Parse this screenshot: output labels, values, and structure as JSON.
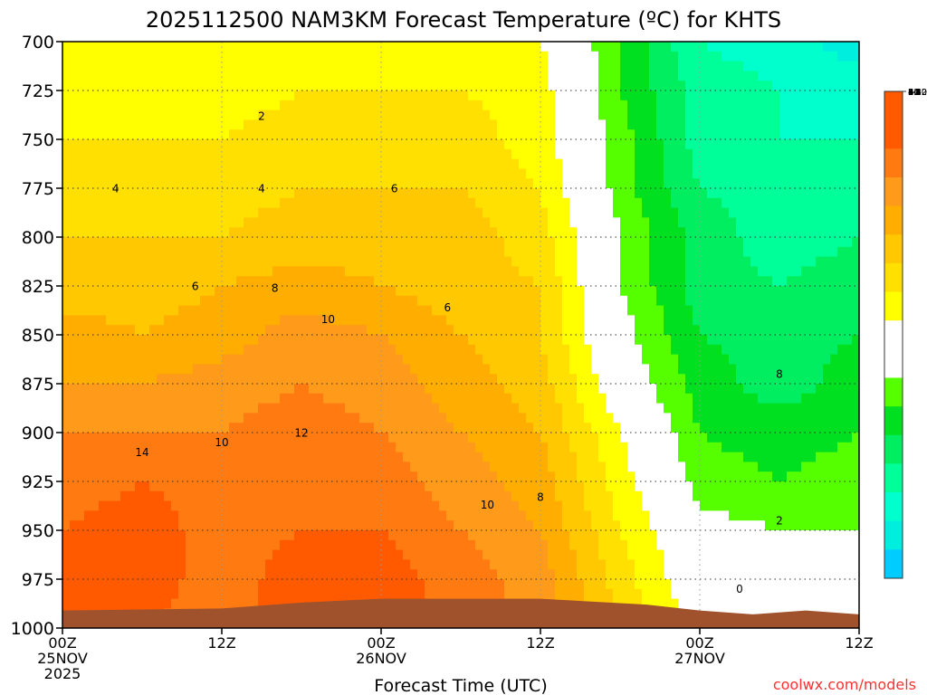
{
  "chart_data": {
    "type": "heatmap",
    "title": "2025112500 NAM3KM Forecast Temperature (ºC) for KHTS",
    "xlabel": "Forecast Time (UTC)",
    "ylabel": "",
    "watermark": "coolwx.com/models",
    "x_range_hours": [
      0,
      60
    ],
    "y_range_hpa": [
      700,
      1000
    ],
    "y_ticks": [
      "700",
      "725",
      "750",
      "775",
      "800",
      "825",
      "850",
      "875",
      "900",
      "925",
      "950",
      "975",
      "1000"
    ],
    "x_ticks": [
      {
        "hour": 0,
        "lines": [
          "00Z",
          "25NOV",
          "2025"
        ]
      },
      {
        "hour": 12,
        "lines": [
          "12Z"
        ]
      },
      {
        "hour": 24,
        "lines": [
          "00Z",
          "26NOV"
        ]
      },
      {
        "hour": 36,
        "lines": [
          "12Z"
        ]
      },
      {
        "hour": 48,
        "lines": [
          "00Z",
          "27NOV"
        ]
      },
      {
        "hour": 60,
        "lines": [
          "12Z"
        ]
      }
    ],
    "colorbar": {
      "labels": [
        "14",
        "12",
        "10",
        "8",
        "6",
        "4",
        "2",
        "−2",
        "−4",
        "−6",
        "−8",
        "−10",
        "−12"
      ],
      "bins": [
        {
          "min": 15,
          "max": 17,
          "color": "#ff5a00"
        },
        {
          "min": 13,
          "max": 15,
          "color": "#ff5a00"
        },
        {
          "min": 11,
          "max": 13,
          "color": "#ff7a10"
        },
        {
          "min": 9,
          "max": 11,
          "color": "#ff9a1a"
        },
        {
          "min": 7,
          "max": 9,
          "color": "#ffae00"
        },
        {
          "min": 5,
          "max": 7,
          "color": "#ffc800"
        },
        {
          "min": 3,
          "max": 5,
          "color": "#ffe000"
        },
        {
          "min": 1,
          "max": 3,
          "color": "#ffff00"
        },
        {
          "min": -1,
          "max": 1,
          "color": "#ffffff"
        },
        {
          "min": -3,
          "max": -1,
          "color": "#ffffff"
        },
        {
          "min": -5,
          "max": -3,
          "color": "#55ff00"
        },
        {
          "min": -7,
          "max": -5,
          "color": "#00e020"
        },
        {
          "min": -9,
          "max": -7,
          "color": "#00ee60"
        },
        {
          "min": -11,
          "max": -9,
          "color": "#00ff99"
        },
        {
          "min": -13,
          "max": -11,
          "color": "#00ffcc"
        },
        {
          "min": -15,
          "max": -13,
          "color": "#00eedd"
        },
        {
          "min": -17,
          "max": -15,
          "color": "#00ccff"
        }
      ]
    },
    "contour_labels": [
      {
        "text": "2",
        "hour": 15,
        "hpa": 740
      },
      {
        "text": "4",
        "hour": 4,
        "hpa": 777
      },
      {
        "text": "4",
        "hour": 15,
        "hpa": 777
      },
      {
        "text": "6",
        "hour": 25,
        "hpa": 777
      },
      {
        "text": "6",
        "hour": 10,
        "hpa": 827
      },
      {
        "text": "8",
        "hour": 16,
        "hpa": 828
      },
      {
        "text": "6",
        "hour": 29,
        "hpa": 838
      },
      {
        "text": "10",
        "hour": 20,
        "hpa": 844
      },
      {
        "text": "10",
        "hour": 12,
        "hpa": 907
      },
      {
        "text": "12",
        "hour": 18,
        "hpa": 902
      },
      {
        "text": "14",
        "hour": 6,
        "hpa": 912
      },
      {
        "text": "10",
        "hour": 32,
        "hpa": 939
      },
      {
        "text": "8",
        "hour": 36,
        "hpa": 935
      },
      {
        "text": "8",
        "hour": 54,
        "hpa": 872
      },
      {
        "text": "2",
        "hour": 54,
        "hpa": 947
      },
      {
        "text": "0",
        "hour": 51,
        "hpa": 982
      }
    ],
    "samples": [
      {
        "hour": 0,
        "temps": [
          2,
          2,
          3,
          4,
          5,
          6,
          8,
          9,
          11,
          12,
          13,
          13,
          13
        ]
      },
      {
        "hour": 6,
        "temps": [
          1,
          2,
          3,
          4,
          5,
          6,
          7,
          9,
          11,
          13,
          14,
          14,
          13
        ]
      },
      {
        "hour": 12,
        "temps": [
          1,
          2,
          3,
          4,
          5,
          7,
          8,
          10,
          11,
          12,
          12,
          12,
          12
        ]
      },
      {
        "hour": 18,
        "temps": [
          2,
          3,
          4,
          5,
          6,
          8,
          10,
          11,
          12,
          13,
          13,
          14,
          14
        ]
      },
      {
        "hour": 24,
        "temps": [
          2,
          3,
          4,
          5,
          6,
          7,
          9,
          10,
          11,
          12,
          13,
          14,
          15
        ]
      },
      {
        "hour": 30,
        "temps": [
          2,
          3,
          4,
          5,
          6,
          6,
          7,
          8,
          9,
          10,
          11,
          12,
          12
        ]
      },
      {
        "hour": 36,
        "temps": [
          1,
          2,
          2,
          3,
          4,
          5,
          5,
          6,
          7,
          8,
          9,
          10,
          10
        ]
      },
      {
        "hour": 42,
        "temps": [
          -5,
          -5,
          -4,
          -4,
          -3,
          -3,
          -2,
          -1,
          1,
          2,
          3,
          4,
          5
        ]
      },
      {
        "hour": 48,
        "temps": [
          -11,
          -10,
          -10,
          -9,
          -8,
          -8,
          -7,
          -6,
          -5,
          -4,
          -2,
          -1,
          0
        ]
      },
      {
        "hour": 54,
        "temps": [
          -12,
          -11,
          -11,
          -10,
          -10,
          -9,
          -8,
          -8,
          -6,
          -5,
          -3,
          -1,
          0
        ]
      },
      {
        "hour": 60,
        "temps": [
          -14,
          -12,
          -11,
          -10,
          -9,
          -8,
          -7,
          -6,
          -5,
          -4,
          -3,
          -2,
          -1
        ]
      }
    ],
    "ground_hpa": [
      {
        "hour": 0,
        "hpa": 991
      },
      {
        "hour": 12,
        "hpa": 990
      },
      {
        "hour": 18,
        "hpa": 987
      },
      {
        "hour": 24,
        "hpa": 985
      },
      {
        "hour": 36,
        "hpa": 985
      },
      {
        "hour": 44,
        "hpa": 988
      },
      {
        "hour": 48,
        "hpa": 991
      },
      {
        "hour": 52,
        "hpa": 993
      },
      {
        "hour": 56,
        "hpa": 991
      },
      {
        "hour": 60,
        "hpa": 993
      }
    ]
  }
}
